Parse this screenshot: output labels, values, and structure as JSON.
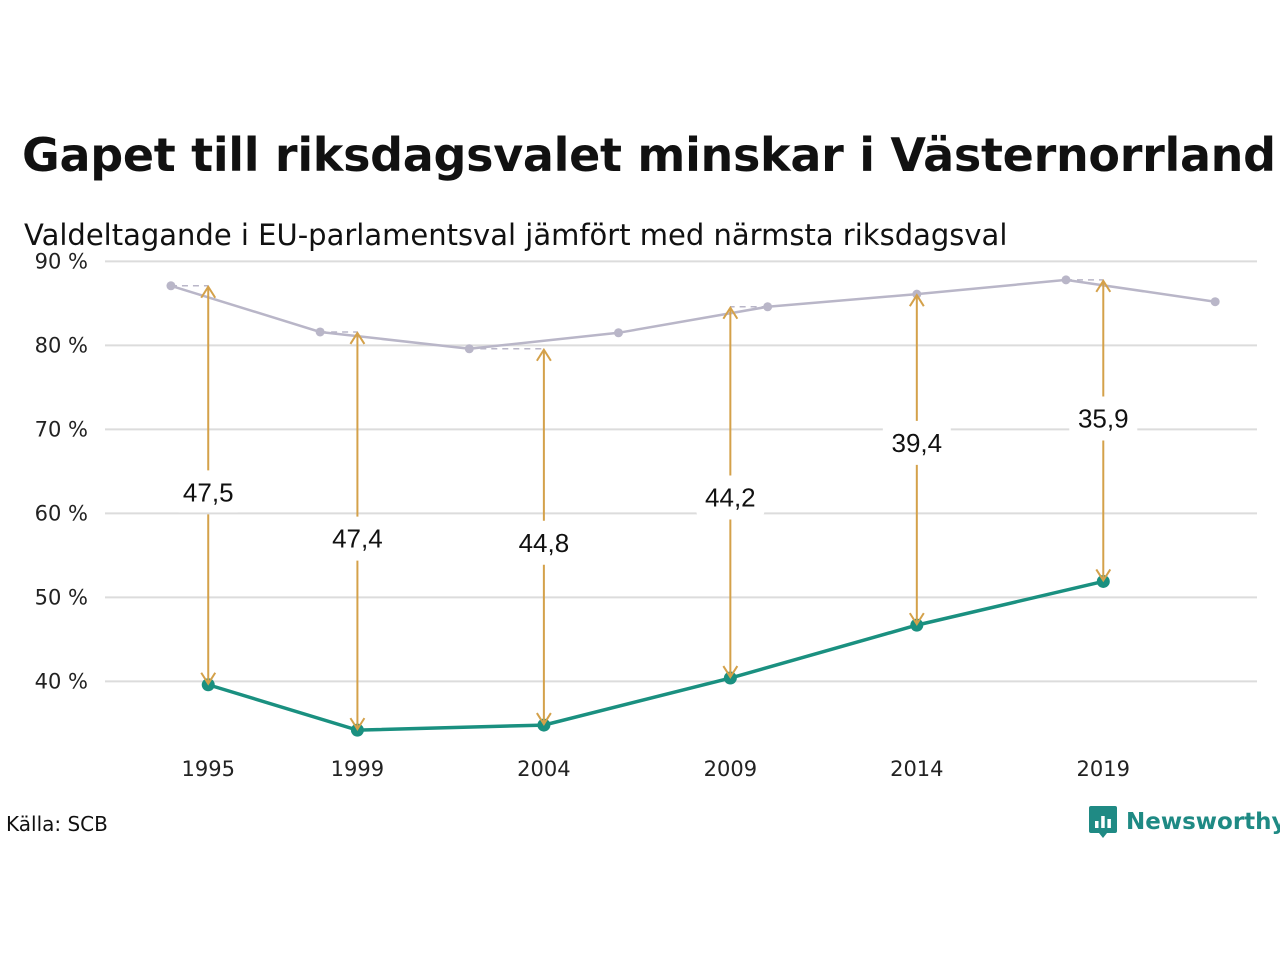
{
  "header": {
    "title": "Gapet till riksdagsvalet minskar i Västernorrland",
    "subtitle": "Valdeltagande i EU-parlamentsval jämfört med närmsta riksdagsval"
  },
  "footer": {
    "source": "Källa: SCB",
    "brand": "Newsworthy"
  },
  "colors": {
    "eu": "#1a9080",
    "riksdag": "#b9b6c8",
    "gap": "#d4a14a",
    "grid": "#dcdcdc"
  },
  "chart_data": {
    "type": "line",
    "ylim": [
      31,
      91
    ],
    "xlim": [
      1992.5,
      2022.8
    ],
    "y_ticks": [
      {
        "value": 40,
        "label": "40 %"
      },
      {
        "value": 50,
        "label": "50 %"
      },
      {
        "value": 60,
        "label": "60 %"
      },
      {
        "value": 70,
        "label": "70 %"
      },
      {
        "value": 80,
        "label": "80 %"
      },
      {
        "value": 90,
        "label": "90 %"
      }
    ],
    "x_ticks": [
      {
        "value": 1995,
        "label": "1995"
      },
      {
        "value": 1999,
        "label": "1999"
      },
      {
        "value": 2004,
        "label": "2004"
      },
      {
        "value": 2009,
        "label": "2009"
      },
      {
        "value": 2014,
        "label": "2014"
      },
      {
        "value": 2019,
        "label": "2019"
      }
    ],
    "series": [
      {
        "key": "riksdag",
        "x": [
          1994,
          1998,
          2002,
          2006,
          2010,
          2014,
          2018,
          2022
        ],
        "values": [
          87.1,
          81.6,
          79.6,
          81.5,
          84.6,
          86.1,
          87.8,
          85.2
        ]
      },
      {
        "key": "eu",
        "x": [
          1995,
          1999,
          2004,
          2009,
          2014,
          2019
        ],
        "values": [
          39.6,
          34.2,
          34.8,
          40.4,
          46.7,
          51.9
        ]
      }
    ],
    "gaps": [
      {
        "x": 1995,
        "from": 39.6,
        "to": 87.1,
        "label": "47,5",
        "label_y": 62.5
      },
      {
        "x": 1999,
        "from": 34.2,
        "to": 81.6,
        "label": "47,4",
        "label_y": 57.0
      },
      {
        "x": 2004,
        "from": 34.8,
        "to": 79.6,
        "label": "44,8",
        "label_y": 56.5
      },
      {
        "x": 2009,
        "from": 40.4,
        "to": 84.6,
        "label": "44,2",
        "label_y": 61.9
      },
      {
        "x": 2014,
        "from": 46.7,
        "to": 86.1,
        "label": "39,4",
        "label_y": 68.4
      },
      {
        "x": 2019,
        "from": 51.9,
        "to": 87.8,
        "label": "35,9",
        "label_y": 71.3
      }
    ]
  }
}
